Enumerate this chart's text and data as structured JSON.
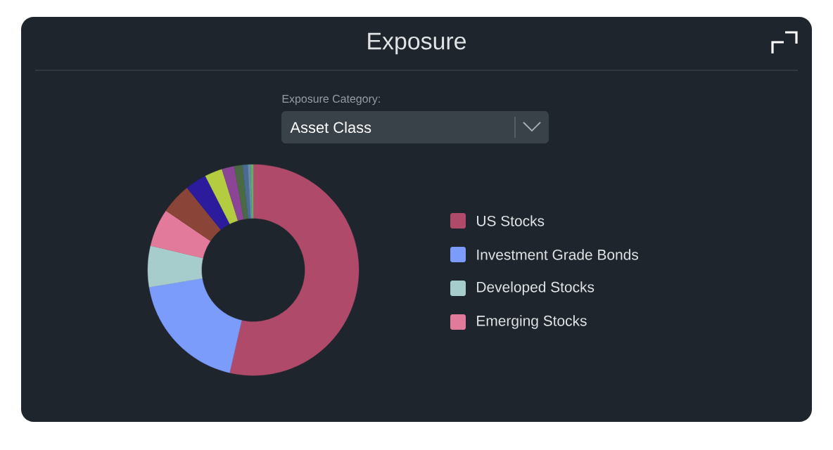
{
  "chart_data": {
    "type": "donut",
    "title": "Exposure",
    "annotations": [
      "Exposure Category:",
      "Asset Class"
    ],
    "categories": [
      "US Stocks",
      "Investment Grade Bonds",
      "Developed Stocks",
      "Emerging Stocks",
      null,
      null,
      null,
      null,
      null,
      null,
      null,
      null
    ],
    "values": [
      53.6,
      18.8,
      6.3,
      5.8,
      4.7,
      3.3,
      2.7,
      1.9,
      1.3,
      0.8,
      0.4,
      0.4
    ],
    "colors": [
      "#b04a6a",
      "#7b9cfa",
      "#a6cccb",
      "#e27a9c",
      "#8a4438",
      "#2c1b9c",
      "#b4cc40",
      "#8c4496",
      "#4a6a44",
      "#4a6c94",
      "#6a8aa8",
      "#6aa868"
    ],
    "legend": "right"
  }
}
